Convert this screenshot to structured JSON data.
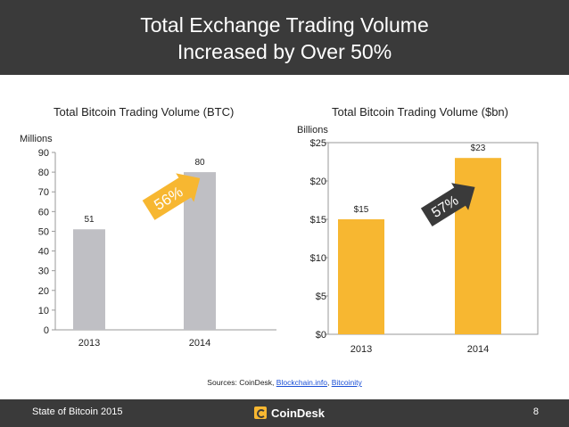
{
  "header": {
    "title_line1": "Total Exchange Trading Volume",
    "title_line2": "Increased by Over 50%"
  },
  "chart_data": [
    {
      "type": "bar",
      "title": "Total Bitcoin Trading Volume (BTC)",
      "ylabel": "Millions",
      "categories": [
        "2013",
        "2014"
      ],
      "values": [
        51,
        80
      ],
      "value_labels": [
        "51",
        "80"
      ],
      "ylim": [
        0,
        90
      ],
      "yticks": [
        0,
        10,
        20,
        30,
        40,
        50,
        60,
        70,
        80,
        90
      ],
      "ytick_labels": [
        "0",
        "10",
        "20",
        "30",
        "40",
        "50",
        "60",
        "70",
        "80",
        "90"
      ],
      "bar_color": "#bfbfc4",
      "growth_label": "56%",
      "arrow_color": "#f7b731"
    },
    {
      "type": "bar",
      "title": "Total Bitcoin Trading Volume ($bn)",
      "ylabel": "Billions",
      "categories": [
        "2013",
        "2014"
      ],
      "values": [
        15,
        23
      ],
      "value_labels": [
        "$15",
        "$23"
      ],
      "ylim": [
        0,
        25
      ],
      "yticks": [
        0,
        5,
        10,
        15,
        20,
        25
      ],
      "ytick_labels": [
        "$0",
        "$5",
        "$10",
        "$15",
        "$20",
        "$25"
      ],
      "bar_color": "#f7b731",
      "growth_label": "57%",
      "arrow_color": "#3a3a3a"
    }
  ],
  "sources": {
    "prefix": "Sources: CoinDesk, ",
    "link1": "Blockchain.info",
    "sep": ", ",
    "link2": "Bitcoinity"
  },
  "footer": {
    "left": "State of Bitcoin 2015",
    "logo": "CoinDesk",
    "page_number": "8"
  }
}
